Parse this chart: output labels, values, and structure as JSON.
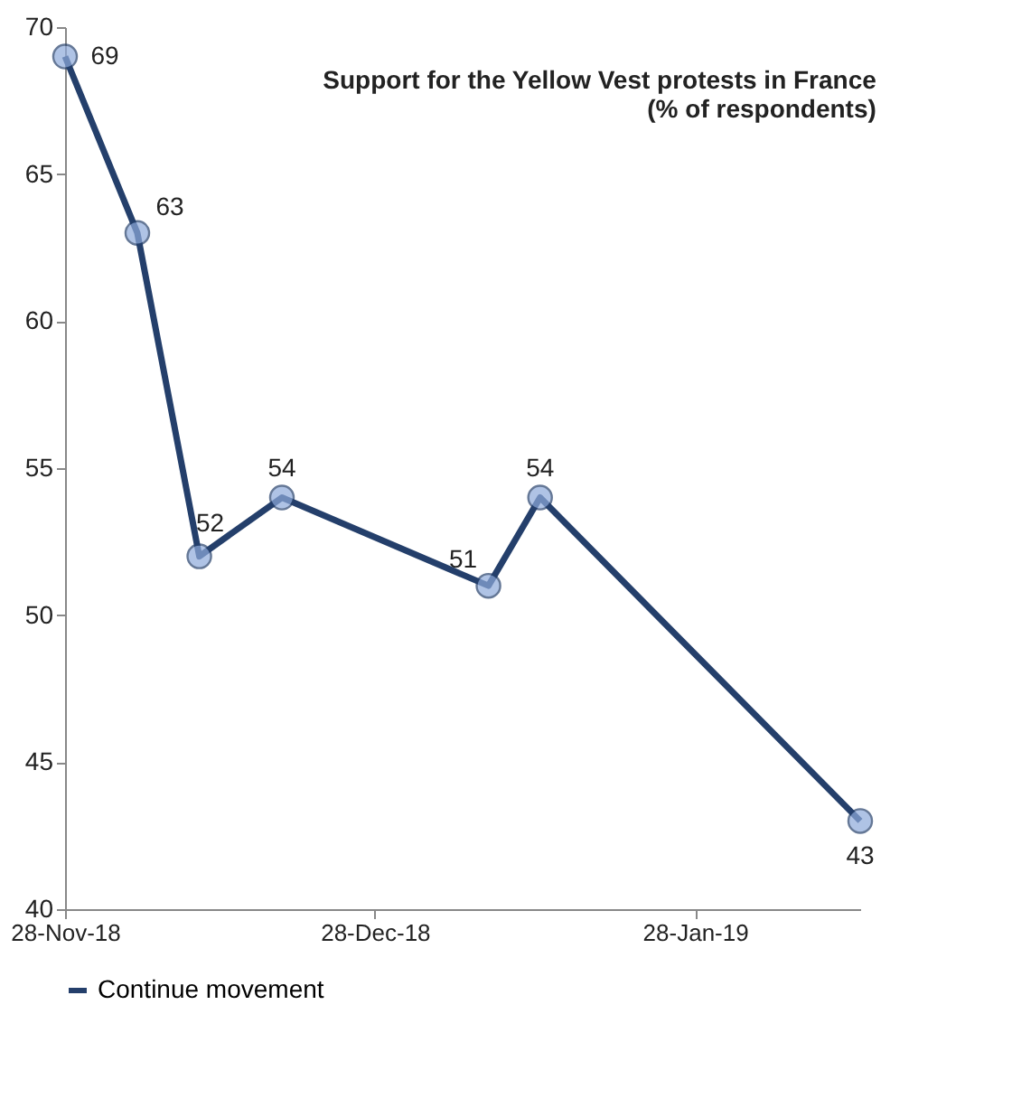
{
  "chart_data": {
    "type": "line",
    "title": [
      "Support for the Yellow Vest protests in France",
      "(% of respondents)"
    ],
    "x": [
      "2018-11-28",
      "2018-12-05",
      "2018-12-11",
      "2018-12-19",
      "2019-01-08",
      "2019-01-13",
      "2019-02-13"
    ],
    "series": [
      {
        "name": "Continue movement",
        "color": "#243f6b",
        "values": [
          69,
          63,
          52,
          54,
          51,
          54,
          43
        ]
      }
    ],
    "xlim": [
      "2018-11-28",
      "2019-02-13"
    ],
    "xticks": [
      {
        "value": "2018-11-28",
        "label": "28-Nov-18"
      },
      {
        "value": "2018-12-28",
        "label": "28-Dec-18"
      },
      {
        "value": "2019-01-28",
        "label": "28-Jan-19"
      }
    ],
    "ylim": [
      40,
      70
    ],
    "yticks": [
      40,
      45,
      50,
      55,
      60,
      65,
      70
    ],
    "data_labels": true,
    "grid": false,
    "legend": "bottom",
    "marker": "circle",
    "line_style": "solid"
  }
}
